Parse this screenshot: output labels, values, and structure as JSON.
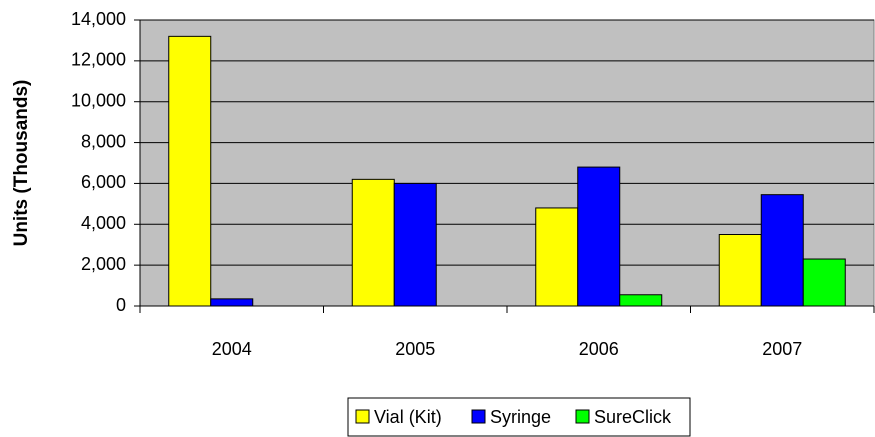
{
  "chart_data": {
    "type": "bar",
    "y_label": "Units (Thousands)",
    "categories": [
      "2004",
      "2005",
      "2006",
      "2007"
    ],
    "series": [
      {
        "name": "Vial (Kit)",
        "color": "#ffff00",
        "values": [
          13200,
          6200,
          4800,
          3500
        ]
      },
      {
        "name": "Syringe",
        "color": "#0000ff",
        "values": [
          350,
          6000,
          6800,
          5450
        ]
      },
      {
        "name": "SureClick",
        "color": "#00ff00",
        "values": [
          null,
          null,
          550,
          2300
        ]
      }
    ],
    "ylim": [
      0,
      14000
    ],
    "yticks": [
      0,
      {
        "value": 2000,
        "label": "2,000"
      },
      {
        "value": 4000,
        "label": "4,000"
      },
      {
        "value": 6000,
        "label": "6,000"
      },
      {
        "value": 8000,
        "label": "8,000"
      },
      {
        "value": 10000,
        "label": "10,000"
      },
      {
        "value": 12000,
        "label": "12,000"
      },
      {
        "value": 14000,
        "label": "14,000"
      }
    ],
    "grid": true,
    "legend": "bottom"
  }
}
